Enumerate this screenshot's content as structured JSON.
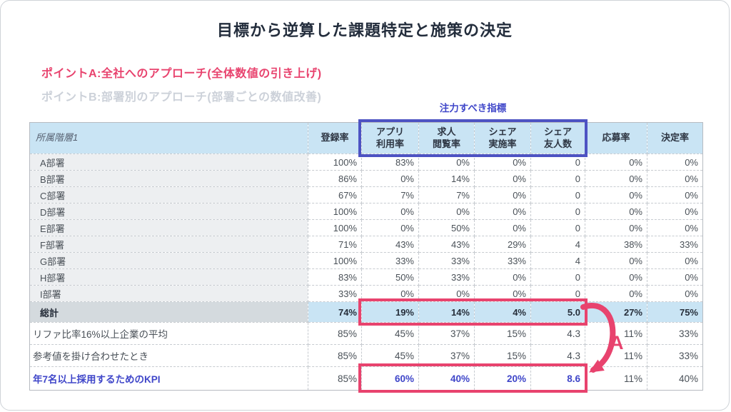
{
  "slide": {
    "title": "目標から逆算した課題特定と施策の決定",
    "point_a": "ポイントA:全社へのアプローチ(全体数値の引き上げ)",
    "point_b": "ポイントB:部署別のアプローチ(部署ごとの数値改善)",
    "focus_label": "注力すべき指標",
    "annotation_letter": "A"
  },
  "colors": {
    "accent_pink": "#e8436e",
    "accent_blue": "#4d53c3",
    "kpi_text_blue": "#3f46c9",
    "header_bg": "#c9e4f4",
    "total_label_bg": "#d4dade",
    "dept_label_bg": "#edeff1"
  },
  "table": {
    "corner_header": "所属階層1",
    "column_headers": [
      "登録率",
      "アプリ\n利用率",
      "求人\n閲覧率",
      "シェア\n実施率",
      "シェア\n友人数",
      "応募率",
      "決定率"
    ],
    "focus_column_indices": [
      1,
      2,
      3,
      4
    ],
    "rows": [
      {
        "type": "dept",
        "label": "A部署",
        "values": [
          "100%",
          "83%",
          "0%",
          "0%",
          "0",
          "0%",
          "0%"
        ]
      },
      {
        "type": "dept",
        "label": "B部署",
        "values": [
          "86%",
          "0%",
          "14%",
          "0%",
          "0",
          "0%",
          "0%"
        ]
      },
      {
        "type": "dept",
        "label": "C部署",
        "values": [
          "67%",
          "7%",
          "7%",
          "0%",
          "0",
          "0%",
          "0%"
        ]
      },
      {
        "type": "dept",
        "label": "D部署",
        "values": [
          "100%",
          "0%",
          "0%",
          "0%",
          "0",
          "0%",
          "0%"
        ]
      },
      {
        "type": "dept",
        "label": "E部署",
        "values": [
          "100%",
          "0%",
          "50%",
          "0%",
          "0",
          "0%",
          "0%"
        ]
      },
      {
        "type": "dept",
        "label": "F部署",
        "values": [
          "71%",
          "43%",
          "43%",
          "29%",
          "4",
          "38%",
          "33%"
        ]
      },
      {
        "type": "dept",
        "label": "G部署",
        "values": [
          "100%",
          "33%",
          "33%",
          "33%",
          "4",
          "0%",
          "0%"
        ]
      },
      {
        "type": "dept",
        "label": "H部署",
        "values": [
          "83%",
          "50%",
          "33%",
          "0%",
          "0",
          "0%",
          "0%"
        ]
      },
      {
        "type": "dept",
        "label": "I部署",
        "values": [
          "33%",
          "0%",
          "0%",
          "0%",
          "0",
          "0%",
          "0%"
        ]
      },
      {
        "type": "total",
        "label": "総計",
        "values": [
          "74%",
          "19%",
          "14%",
          "4%",
          "5.0",
          "27%",
          "75%"
        ]
      },
      {
        "type": "ref",
        "label": "リファ比率16%以上企業の平均",
        "values": [
          "85%",
          "45%",
          "37%",
          "15%",
          "4.3",
          "11%",
          "33%"
        ]
      },
      {
        "type": "ref",
        "label": "参考値を掛け合わせたとき",
        "values": [
          "85%",
          "45%",
          "37%",
          "15%",
          "4.3",
          "11%",
          "33%"
        ]
      },
      {
        "type": "kpi",
        "label": "年7名以上採用するためのKPI",
        "values": [
          "85%",
          "60%",
          "40%",
          "20%",
          "8.6",
          "11%",
          "40%"
        ],
        "accent_value_indices": [
          1,
          2,
          3,
          4
        ]
      }
    ]
  }
}
